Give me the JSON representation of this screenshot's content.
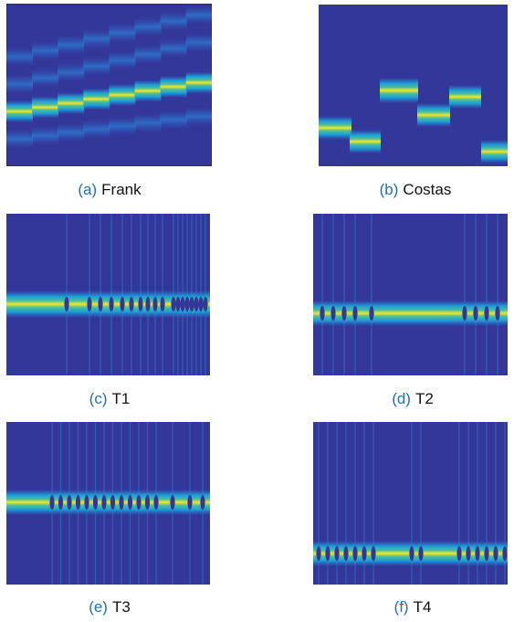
{
  "panels": [
    {
      "label": "(a)",
      "name": "Frank"
    },
    {
      "label": "(b)",
      "name": "Costas"
    },
    {
      "label": "(c)",
      "name": "T1"
    },
    {
      "label": "(d)",
      "name": "T2"
    },
    {
      "label": "(e)",
      "name": "T3"
    },
    {
      "label": "(f)",
      "name": "T4"
    }
  ]
}
